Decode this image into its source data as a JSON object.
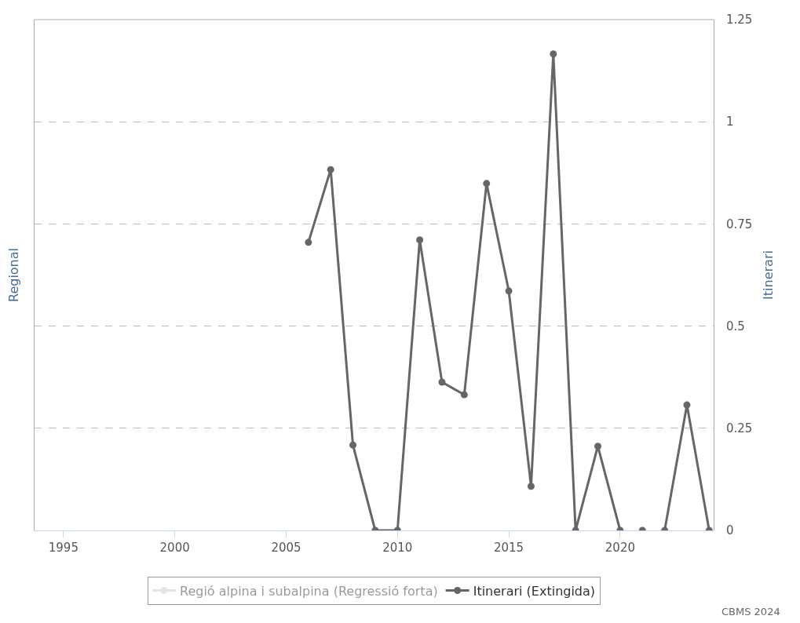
{
  "chart_data": {
    "type": "line",
    "ylabel": "Regional",
    "y2label": "Itinerari",
    "x": [
      2006,
      2007,
      2008,
      2009,
      2010,
      2011,
      2012,
      2013,
      2014,
      2015,
      2016,
      2017,
      2018,
      2019,
      2020,
      2020.5,
      2021,
      2021.5,
      2022,
      2023,
      2024
    ],
    "xlim": [
      1993.7,
      2024.2
    ],
    "xticks": [
      1995,
      2000,
      2005,
      2010,
      2015,
      2020
    ],
    "y2lim": [
      0,
      1.25
    ],
    "y2ticks": [
      0,
      0.25,
      0.5,
      0.75,
      1,
      1.25
    ],
    "series": [
      {
        "name": "Regió alpina i subalpina (Regressió forta)",
        "color": "#cccccc",
        "values": [
          null,
          null,
          null,
          null,
          null,
          null,
          null,
          null,
          null,
          null,
          null,
          null,
          null,
          null,
          null,
          null,
          null,
          null,
          null,
          null,
          null
        ]
      },
      {
        "name": "Itinerari (Extingida)",
        "color": "#666666",
        "axis": "y2",
        "values": [
          0.705,
          0.883,
          0.209,
          0,
          0,
          0.711,
          0.363,
          0.332,
          0.849,
          0.586,
          0.108,
          1.166,
          0,
          0.206,
          0,
          null,
          0,
          null,
          0,
          0.307,
          0
        ]
      }
    ],
    "grid": "y",
    "marker": "circle",
    "line_style": "solid",
    "legend": "bottom",
    "annotations": [
      "CBMS 2024"
    ]
  }
}
